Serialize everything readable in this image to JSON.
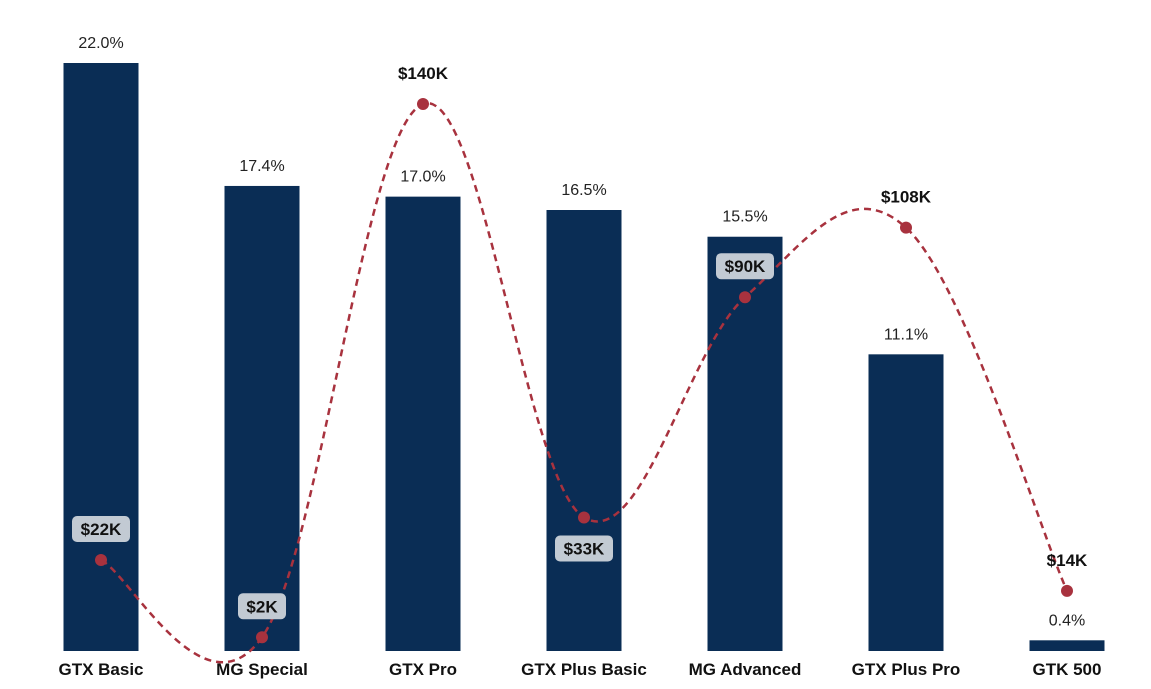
{
  "chart_data": {
    "type": "bar",
    "categories": [
      "GTX Basic",
      "MG Special",
      "GTX Pro",
      "GTX Plus Basic",
      "MG Advanced",
      "GTX Plus Pro",
      "GTK 500"
    ],
    "series": [
      {
        "type": "bar",
        "values": [
          22.0,
          17.4,
          17.0,
          16.5,
          15.5,
          11.1,
          0.4
        ],
        "labels": [
          "22.0%",
          "17.4%",
          "17.0%",
          "16.5%",
          "15.5%",
          "11.1%",
          "0.4%"
        ],
        "color": "#0a2d55"
      },
      {
        "type": "line",
        "values": [
          22,
          2,
          140,
          33,
          90,
          108,
          14
        ],
        "labels": [
          "$22K",
          "$2K",
          "$140K",
          "$33K",
          "$90K",
          "$108K",
          "$14K"
        ],
        "label_boxed": [
          true,
          true,
          false,
          true,
          true,
          false,
          false
        ],
        "color": "#a8323e",
        "style": "dashed"
      }
    ],
    "ylim_bar": [
      0,
      22.0
    ],
    "ylim_line": [
      0,
      140
    ],
    "grid": false,
    "legend": "none",
    "title": "",
    "xlabel": "",
    "ylabel": ""
  }
}
